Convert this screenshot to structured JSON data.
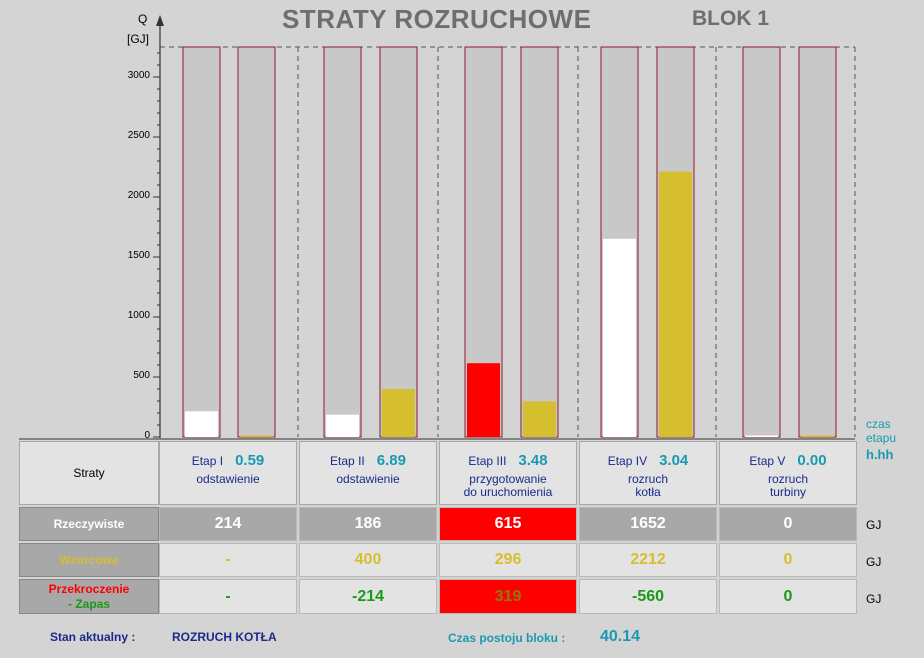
{
  "header": {
    "title": "STRATY  ROZRUCHOWE",
    "block": "BLOK 1"
  },
  "axis": {
    "q_label": "Q",
    "unit_label": "[GJ]",
    "ticks": [
      "3000",
      "2500",
      "2000",
      "1500",
      "1000",
      "500",
      "0"
    ]
  },
  "czas_etapu": {
    "line1": "czas",
    "line2": "etapu",
    "unit": "h.hh"
  },
  "chart_data": {
    "type": "bar",
    "categories": [
      "Etap I",
      "Etap II",
      "Etap III",
      "Etap IV",
      "Etap V"
    ],
    "ylim": [
      0,
      3250
    ],
    "ytick_step": 500,
    "series": [
      {
        "name": "Rzeczywiste",
        "values": [
          214,
          186,
          615,
          1652,
          0
        ],
        "colors": [
          "#ffffff",
          "#ffffff",
          "#ff0000",
          "#ffffff",
          "#ffffff"
        ]
      },
      {
        "name": "Wzorcowe",
        "values": [
          0,
          400,
          296,
          2212,
          0
        ],
        "colors": [
          "#d6bf2f",
          "#d6bf2f",
          "#d6bf2f",
          "#d6bf2f",
          "#d6bf2f"
        ]
      }
    ]
  },
  "table": {
    "straty_label": "Straty",
    "stages": [
      {
        "name": "Etap  I",
        "time": "0.59",
        "desc": "odstawienie"
      },
      {
        "name": "Etap  II",
        "time": "6.89",
        "desc": "odstawienie"
      },
      {
        "name": "Etap  III",
        "time": "3.48",
        "desc": "przygotowanie\ndo uruchomienia"
      },
      {
        "name": "Etap  IV",
        "time": "3.04",
        "desc": "rozruch\nkotła"
      },
      {
        "name": "Etap  V",
        "time": "0.00",
        "desc": "rozruch\nturbiny"
      }
    ],
    "rows": [
      {
        "label": "Rzeczywiste",
        "values": [
          "214",
          "186",
          "615",
          "1652",
          "0"
        ],
        "unit": "GJ"
      },
      {
        "label": "Wzorcowe",
        "values": [
          "-",
          "400",
          "296",
          "2212",
          "0"
        ],
        "unit": "GJ"
      },
      {
        "label_line1": "Przekroczenie",
        "label_line2": "- Zapas",
        "values": [
          "-",
          "-214",
          "319",
          "-560",
          "0"
        ],
        "unit": "GJ"
      }
    ]
  },
  "status": {
    "label": "Stan aktualny :",
    "value": "ROZRUCH KOTŁA"
  },
  "postoj": {
    "label": "Czas postoju bloku :",
    "value": "40.14"
  },
  "colors": {
    "accent_cyan": "#1a9ab0",
    "navy": "#1a2a8a",
    "gold": "#d6bf2f",
    "red": "#ff0000",
    "green": "#1a9a1a",
    "frame": "#8b1a2a"
  }
}
